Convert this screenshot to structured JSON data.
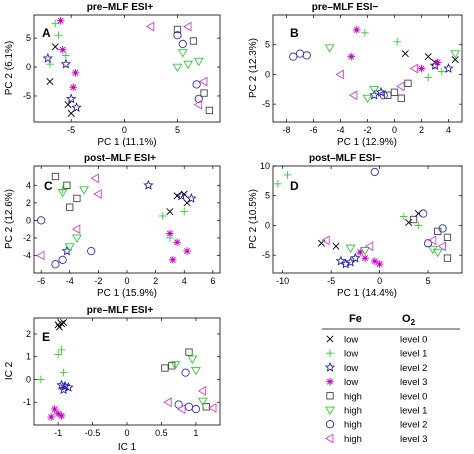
{
  "chart_data": [
    {
      "type": "scatter",
      "letter": "A",
      "title": "pre–MLF ESI+",
      "xlabel": "PC 1 (11.1%)",
      "ylabel": "PC 2 (6.1%)",
      "xlim": [
        -8.5,
        9
      ],
      "ylim": [
        -9.5,
        9
      ],
      "xticks": [
        -5,
        0,
        5
      ],
      "yticks": [
        -5,
        0,
        5
      ],
      "points": [
        {
          "c": 0,
          "x": -6.5,
          "y": 3.5
        },
        {
          "c": 0,
          "x": -7.0,
          "y": -2.5
        },
        {
          "c": 0,
          "x": -5.0,
          "y": -8.0
        },
        {
          "c": 0,
          "x": -5.3,
          "y": -6.5
        },
        {
          "c": 1,
          "x": -6.2,
          "y": 5.5
        },
        {
          "c": 1,
          "x": -6.5,
          "y": 7.5
        },
        {
          "c": 1,
          "x": -5.5,
          "y": 2.0
        },
        {
          "c": 1,
          "x": -7.0,
          "y": 0.5
        },
        {
          "c": 2,
          "x": -7.2,
          "y": 1.5
        },
        {
          "c": 2,
          "x": -5.5,
          "y": 0.5
        },
        {
          "c": 2,
          "x": -4.5,
          "y": -7.0
        },
        {
          "c": 2,
          "x": -5.0,
          "y": -5.5
        },
        {
          "c": 3,
          "x": -6.0,
          "y": 8.0
        },
        {
          "c": 3,
          "x": -5.8,
          "y": 3.0
        },
        {
          "c": 3,
          "x": -4.6,
          "y": -1.0
        },
        {
          "c": 3,
          "x": -4.8,
          "y": -3.5
        },
        {
          "c": 4,
          "x": 5.0,
          "y": 6.5
        },
        {
          "c": 4,
          "x": 6.5,
          "y": 4.5
        },
        {
          "c": 4,
          "x": 7.5,
          "y": -4.5
        },
        {
          "c": 4,
          "x": 8.0,
          "y": -7.5
        },
        {
          "c": 5,
          "x": 5.5,
          "y": 2.5
        },
        {
          "c": 5,
          "x": 5.0,
          "y": 0.0
        },
        {
          "c": 5,
          "x": 7.0,
          "y": 1.0
        },
        {
          "c": 5,
          "x": 6.0,
          "y": 0.5
        },
        {
          "c": 6,
          "x": 5.0,
          "y": 5.5
        },
        {
          "c": 6,
          "x": 5.5,
          "y": 4.0
        },
        {
          "c": 6,
          "x": 7.0,
          "y": -5.5
        },
        {
          "c": 6,
          "x": 6.8,
          "y": -3.0
        },
        {
          "c": 7,
          "x": 2.5,
          "y": 7.0
        },
        {
          "c": 7,
          "x": 6.0,
          "y": 7.0
        },
        {
          "c": 7,
          "x": 7.5,
          "y": -2.5
        },
        {
          "c": 7,
          "x": 7.0,
          "y": -6.5
        }
      ]
    },
    {
      "type": "scatter",
      "letter": "B",
      "title": "pre–MLF ESI−",
      "xlabel": "PC 1 (12.9%)",
      "ylabel": "PC 2 (12.3%)",
      "xlim": [
        -9,
        5
      ],
      "ylim": [
        -8,
        10
      ],
      "xticks": [
        -8,
        -6,
        -4,
        -2,
        0,
        2,
        4
      ],
      "yticks": [
        -5,
        0,
        5
      ],
      "points": [
        {
          "c": 0,
          "x": 0.8,
          "y": 3.5
        },
        {
          "c": 0,
          "x": 3.0,
          "y": 2.0
        },
        {
          "c": 0,
          "x": 4.5,
          "y": 2.5
        },
        {
          "c": 0,
          "x": 2.5,
          "y": 3.0
        },
        {
          "c": 1,
          "x": -2.2,
          "y": 7.0
        },
        {
          "c": 1,
          "x": 0.2,
          "y": 5.5
        },
        {
          "c": 1,
          "x": 2.5,
          "y": -0.5
        },
        {
          "c": 1,
          "x": 3.5,
          "y": 0.5
        },
        {
          "c": 2,
          "x": -1.0,
          "y": -3.0
        },
        {
          "c": 2,
          "x": -1.5,
          "y": -3.5
        },
        {
          "c": 2,
          "x": 3.0,
          "y": 1.5
        },
        {
          "c": 2,
          "x": 4.0,
          "y": 1.0
        },
        {
          "c": 3,
          "x": -2.8,
          "y": 7.5
        },
        {
          "c": 3,
          "x": -3.2,
          "y": 3.0
        },
        {
          "c": 3,
          "x": 2.0,
          "y": 1.0
        },
        {
          "c": 3,
          "x": 3.2,
          "y": 2.0
        },
        {
          "c": 4,
          "x": -0.5,
          "y": -3.5
        },
        {
          "c": 4,
          "x": 0.0,
          "y": -3.0
        },
        {
          "c": 4,
          "x": 1.0,
          "y": -1.5
        },
        {
          "c": 4,
          "x": 0.5,
          "y": -4.0
        },
        {
          "c": 5,
          "x": -4.8,
          "y": 4.5
        },
        {
          "c": 5,
          "x": -1.5,
          "y": -2.5
        },
        {
          "c": 5,
          "x": -2.0,
          "y": -4.0
        },
        {
          "c": 5,
          "x": 4.5,
          "y": 3.5
        },
        {
          "c": 6,
          "x": -7.5,
          "y": 3.0
        },
        {
          "c": 6,
          "x": -7.0,
          "y": 3.5
        },
        {
          "c": 6,
          "x": -6.5,
          "y": 3.2
        },
        {
          "c": 6,
          "x": -0.8,
          "y": -3.5
        },
        {
          "c": 7,
          "x": -4.0,
          "y": 0.0
        },
        {
          "c": 7,
          "x": -3.0,
          "y": -3.5
        },
        {
          "c": 7,
          "x": 0.5,
          "y": -2.0
        },
        {
          "c": 7,
          "x": 1.5,
          "y": 1.0
        }
      ]
    },
    {
      "type": "scatter",
      "letter": "C",
      "title": "post–MLF ESI+",
      "xlabel": "PC 1 (15.9%)",
      "ylabel": "PC 2 (12.6%)",
      "xlim": [
        -6.5,
        6.5
      ],
      "ylim": [
        -6,
        6.2
      ],
      "xticks": [
        -6,
        -4,
        -2,
        0,
        2,
        4,
        6
      ],
      "yticks": [
        -4,
        -2,
        0,
        2,
        4
      ],
      "points": [
        {
          "c": 0,
          "x": 3.5,
          "y": 2.8
        },
        {
          "c": 0,
          "x": 4.0,
          "y": 3.0
        },
        {
          "c": 0,
          "x": 3.0,
          "y": 1.0
        },
        {
          "c": 0,
          "x": 4.2,
          "y": 2.0
        },
        {
          "c": 1,
          "x": -4.5,
          "y": 3.5
        },
        {
          "c": 1,
          "x": 2.5,
          "y": 0.5
        },
        {
          "c": 1,
          "x": 3.0,
          "y": -2.0
        },
        {
          "c": 1,
          "x": 4.0,
          "y": 1.0
        },
        {
          "c": 2,
          "x": -4.2,
          "y": -3.5
        },
        {
          "c": 2,
          "x": 1.5,
          "y": 4.0
        },
        {
          "c": 2,
          "x": 4.5,
          "y": 2.5
        },
        {
          "c": 2,
          "x": 3.8,
          "y": 2.8
        },
        {
          "c": 3,
          "x": 3.0,
          "y": -1.5
        },
        {
          "c": 3,
          "x": 3.5,
          "y": -2.5
        },
        {
          "c": 3,
          "x": 3.2,
          "y": -4.5
        },
        {
          "c": 3,
          "x": 4.2,
          "y": -3.5
        },
        {
          "c": 4,
          "x": -5.0,
          "y": 5.0
        },
        {
          "c": 4,
          "x": -4.2,
          "y": 4.0
        },
        {
          "c": 4,
          "x": -4.0,
          "y": 1.5
        },
        {
          "c": 4,
          "x": -3.5,
          "y": 2.5
        },
        {
          "c": 5,
          "x": -4.5,
          "y": 3.2
        },
        {
          "c": 5,
          "x": -3.0,
          "y": 3.5
        },
        {
          "c": 5,
          "x": -3.5,
          "y": -2.0
        },
        {
          "c": 5,
          "x": -4.0,
          "y": -3.0
        },
        {
          "c": 6,
          "x": -5.0,
          "y": -5.0
        },
        {
          "c": 6,
          "x": -4.5,
          "y": -4.5
        },
        {
          "c": 6,
          "x": -2.5,
          "y": -3.5
        },
        {
          "c": 6,
          "x": -6.0,
          "y": 0.0
        },
        {
          "c": 7,
          "x": -2.2,
          "y": 4.8
        },
        {
          "c": 7,
          "x": -2.0,
          "y": 3.0
        },
        {
          "c": 7,
          "x": -3.5,
          "y": -1.0
        },
        {
          "c": 7,
          "x": -6.0,
          "y": -4.0
        }
      ]
    },
    {
      "type": "scatter",
      "letter": "D",
      "title": "post–MLF ESI−",
      "xlabel": "PC 1 (14.4%)",
      "ylabel": "PC 2 (10.5%)",
      "xlim": [
        -11,
        8.5
      ],
      "ylim": [
        -8,
        10
      ],
      "xticks": [
        -10,
        -5,
        0,
        5
      ],
      "yticks": [
        -5,
        0,
        5,
        10
      ],
      "points": [
        {
          "c": 0,
          "x": -6.0,
          "y": -3.0
        },
        {
          "c": 0,
          "x": -4.5,
          "y": -3.5
        },
        {
          "c": 0,
          "x": 3.0,
          "y": 0.5
        },
        {
          "c": 0,
          "x": 4.0,
          "y": 2.0
        },
        {
          "c": 1,
          "x": -9.5,
          "y": 8.5
        },
        {
          "c": 1,
          "x": -10.5,
          "y": 7.0
        },
        {
          "c": 1,
          "x": 2.5,
          "y": 1.5
        },
        {
          "c": 1,
          "x": 4.0,
          "y": 0.0
        },
        {
          "c": 2,
          "x": -4.0,
          "y": -6.0
        },
        {
          "c": 2,
          "x": -3.5,
          "y": -6.5
        },
        {
          "c": 2,
          "x": -2.5,
          "y": -5.5
        },
        {
          "c": 2,
          "x": -3.0,
          "y": -6.2
        },
        {
          "c": 3,
          "x": -2.0,
          "y": -4.5
        },
        {
          "c": 3,
          "x": -1.5,
          "y": -5.5
        },
        {
          "c": 3,
          "x": -0.5,
          "y": -6.0
        },
        {
          "c": 3,
          "x": 0.0,
          "y": -6.5
        },
        {
          "c": 4,
          "x": 3.5,
          "y": 1.0
        },
        {
          "c": 4,
          "x": 6.0,
          "y": -1.0
        },
        {
          "c": 4,
          "x": 7.0,
          "y": -5.5
        },
        {
          "c": 4,
          "x": 7.0,
          "y": -2.0
        },
        {
          "c": 5,
          "x": -3.0,
          "y": -3.8
        },
        {
          "c": 5,
          "x": -1.5,
          "y": -4.2
        },
        {
          "c": 5,
          "x": 5.5,
          "y": -4.0
        },
        {
          "c": 5,
          "x": 6.0,
          "y": -4.5
        },
        {
          "c": 6,
          "x": -0.5,
          "y": 9.0
        },
        {
          "c": 6,
          "x": 4.5,
          "y": 2.0
        },
        {
          "c": 6,
          "x": 6.5,
          "y": -0.5
        },
        {
          "c": 6,
          "x": 5.0,
          "y": -3.0
        },
        {
          "c": 7,
          "x": -5.5,
          "y": -2.5
        },
        {
          "c": 7,
          "x": -1.0,
          "y": -3.5
        },
        {
          "c": 7,
          "x": 6.5,
          "y": -3.5
        },
        {
          "c": 7,
          "x": 5.5,
          "y": -2.5
        }
      ]
    },
    {
      "type": "scatter",
      "letter": "E",
      "title": "pre–MLF ESI+",
      "xlabel": "IC 1",
      "ylabel": "IC 2",
      "xlim": [
        -1.35,
        1.35
      ],
      "ylim": [
        -2.0,
        2.7
      ],
      "xticks": [
        -1,
        -0.5,
        0,
        0.5,
        1
      ],
      "yticks": [
        -1,
        0,
        1,
        2
      ],
      "points": [
        {
          "c": 0,
          "x": -1.0,
          "y": 2.4
        },
        {
          "c": 0,
          "x": -0.98,
          "y": 2.3
        },
        {
          "c": 0,
          "x": -0.95,
          "y": 2.45
        },
        {
          "c": 0,
          "x": -0.92,
          "y": 2.5
        },
        {
          "c": 1,
          "x": -0.95,
          "y": 1.3
        },
        {
          "c": 1,
          "x": -1.0,
          "y": 1.1
        },
        {
          "c": 1,
          "x": -0.92,
          "y": 0.3
        },
        {
          "c": 1,
          "x": -1.25,
          "y": 0.0
        },
        {
          "c": 2,
          "x": -0.95,
          "y": -0.25
        },
        {
          "c": 2,
          "x": -0.9,
          "y": -0.3
        },
        {
          "c": 2,
          "x": -0.85,
          "y": -0.35
        },
        {
          "c": 2,
          "x": -0.92,
          "y": -0.45
        },
        {
          "c": 3,
          "x": -1.05,
          "y": -1.3
        },
        {
          "c": 3,
          "x": -1.0,
          "y": -1.5
        },
        {
          "c": 3,
          "x": -0.95,
          "y": -1.6
        },
        {
          "c": 3,
          "x": -1.1,
          "y": -1.65
        },
        {
          "c": 4,
          "x": 0.55,
          "y": 0.5
        },
        {
          "c": 4,
          "x": 0.65,
          "y": 0.6
        },
        {
          "c": 4,
          "x": 0.9,
          "y": 1.2
        },
        {
          "c": 4,
          "x": 1.15,
          "y": -1.2
        },
        {
          "c": 5,
          "x": 0.7,
          "y": 0.65
        },
        {
          "c": 5,
          "x": 1.0,
          "y": 0.4
        },
        {
          "c": 5,
          "x": 0.95,
          "y": 0.9
        },
        {
          "c": 5,
          "x": 1.1,
          "y": -0.95
        },
        {
          "c": 6,
          "x": 0.85,
          "y": 0.3
        },
        {
          "c": 6,
          "x": 0.9,
          "y": -1.2
        },
        {
          "c": 6,
          "x": 0.75,
          "y": -1.1
        },
        {
          "c": 6,
          "x": 1.0,
          "y": -1.3
        },
        {
          "c": 7,
          "x": 0.6,
          "y": -1.0
        },
        {
          "c": 7,
          "x": 0.8,
          "y": -1.3
        },
        {
          "c": 7,
          "x": 1.25,
          "y": -1.25
        },
        {
          "c": 7,
          "x": 1.1,
          "y": -0.5
        }
      ]
    }
  ],
  "legend": {
    "col1_header": "Fe",
    "col2_header": "O",
    "col2_header_sub": "2",
    "entries": [
      {
        "marker": "x",
        "color": "#000000",
        "fe": "low",
        "o2": "level 0"
      },
      {
        "marker": "plus",
        "color": "#33cc33",
        "fe": "low",
        "o2": "level 1"
      },
      {
        "marker": "star",
        "color": "#2222aa",
        "fe": "low",
        "o2": "level 2"
      },
      {
        "marker": "asterisk",
        "color": "#cc00cc",
        "fe": "low",
        "o2": "level 3"
      },
      {
        "marker": "square",
        "color": "#444444",
        "fe": "high",
        "o2": "level 0"
      },
      {
        "marker": "triangle-down",
        "color": "#33cc33",
        "fe": "high",
        "o2": "level 1"
      },
      {
        "marker": "circle",
        "color": "#3333aa",
        "fe": "high",
        "o2": "level 2"
      },
      {
        "marker": "triangle-left",
        "color": "#cc44cc",
        "fe": "high",
        "o2": "level 3"
      }
    ]
  }
}
